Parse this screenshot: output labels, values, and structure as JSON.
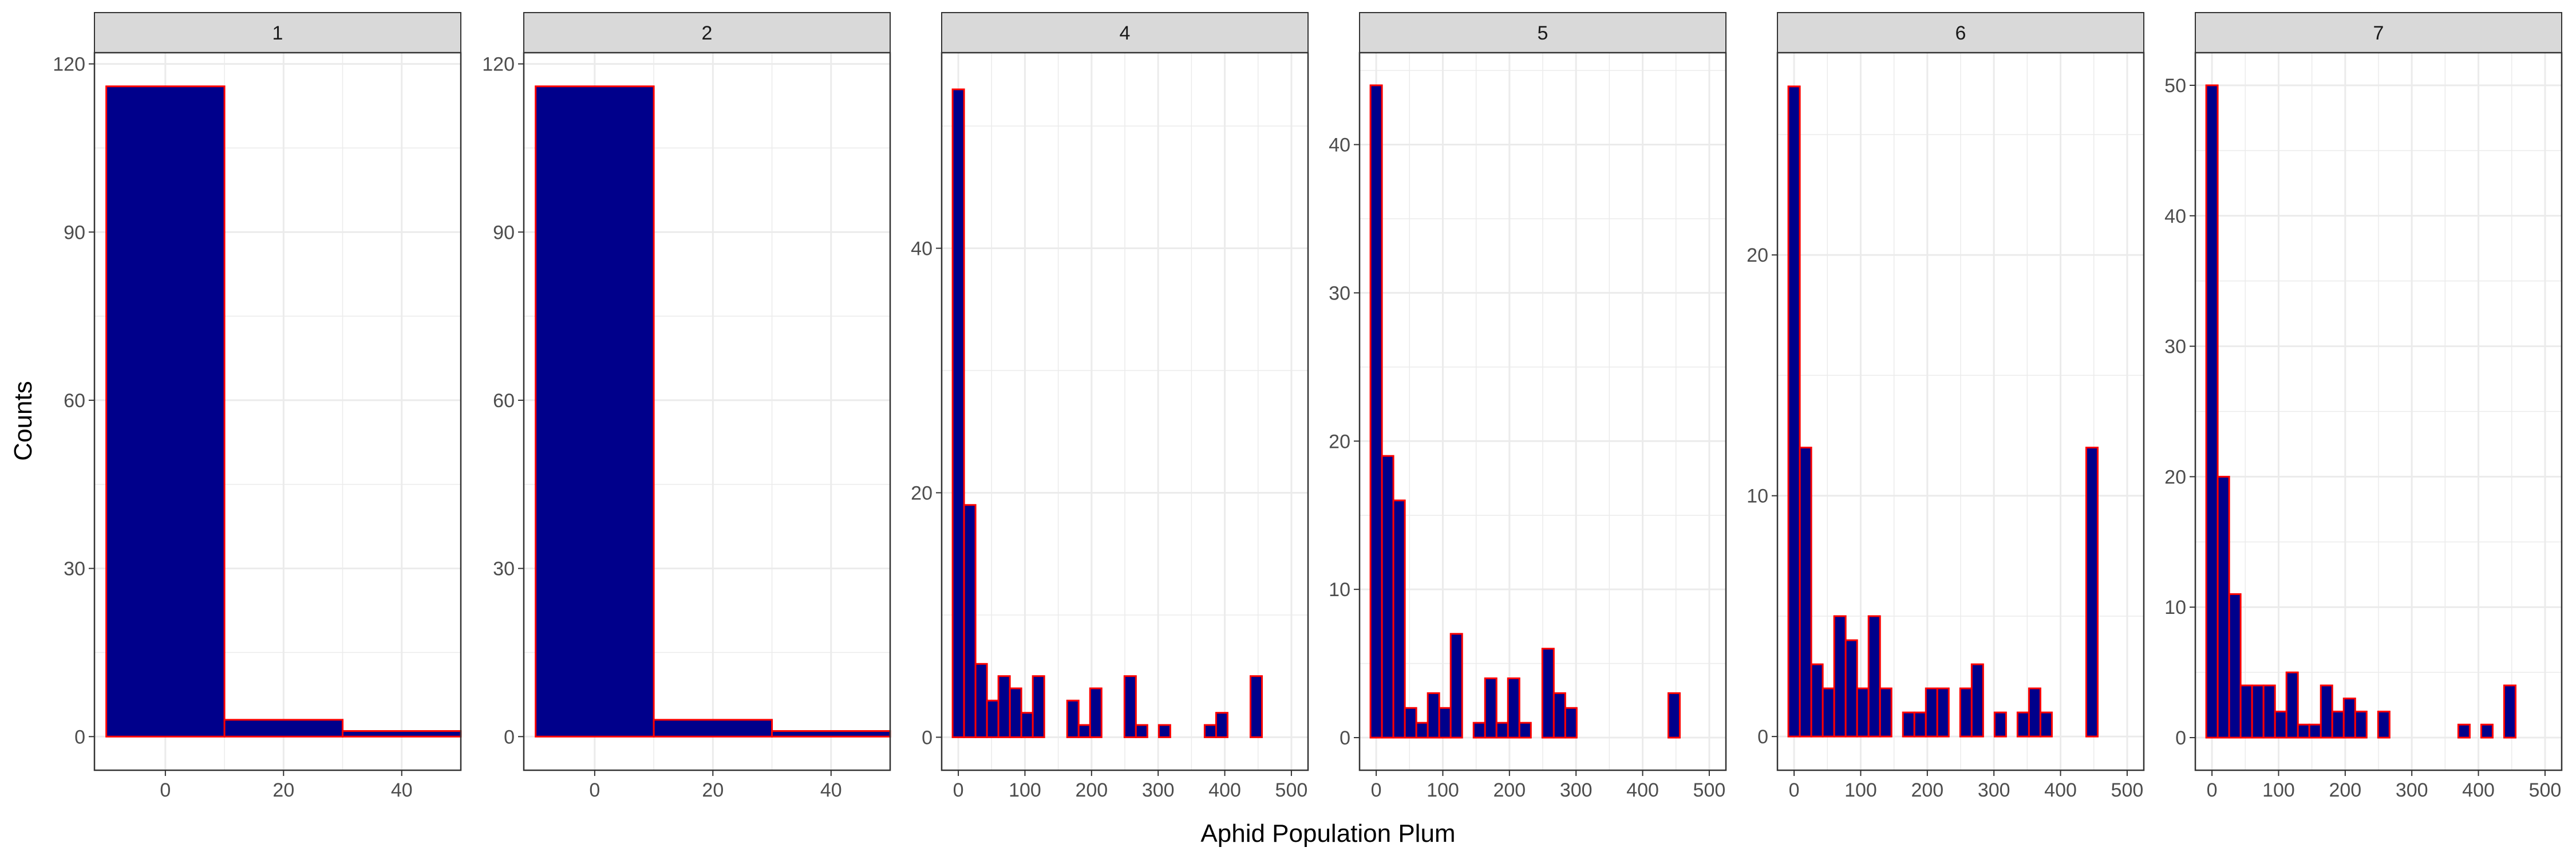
{
  "chart_data": {
    "type": "bar",
    "subtype": "faceted-histogram",
    "xlabel": "Aphid Population Plum",
    "ylabel": "Counts",
    "colors": {
      "fill": "#00008b",
      "stroke": "#ff0000",
      "strip_fill": "#d9d9d9",
      "grid": "#ebebeb"
    },
    "grid": true,
    "panels": [
      {
        "strip": "1",
        "xlim": [
          -12,
          50
        ],
        "ylim": [
          -6,
          122
        ],
        "xticks": [
          0,
          20,
          40
        ],
        "yticks": [
          0,
          30,
          60,
          90,
          120
        ],
        "bins": [
          [
            -10,
            10,
            116
          ],
          [
            10,
            30,
            3
          ],
          [
            30,
            50,
            1
          ]
        ]
      },
      {
        "strip": "2",
        "xlim": [
          -12,
          50
        ],
        "ylim": [
          -6,
          122
        ],
        "xticks": [
          0,
          20,
          40
        ],
        "yticks": [
          0,
          30,
          60,
          90,
          120
        ],
        "bins": [
          [
            -10,
            10,
            116
          ],
          [
            10,
            30,
            3
          ],
          [
            30,
            50,
            1
          ]
        ]
      },
      {
        "strip": "4",
        "xlim": [
          -25,
          525
        ],
        "ylim": [
          -2.7,
          56
        ],
        "xticks": [
          0,
          100,
          200,
          300,
          400,
          500
        ],
        "yticks": [
          0,
          20,
          40
        ],
        "binwidth": 17.2,
        "counts": [
          53,
          19,
          6,
          3,
          5,
          4,
          2,
          5,
          0,
          0,
          3,
          1,
          4,
          0,
          0,
          5,
          1,
          0,
          1,
          0,
          0,
          0,
          1,
          2,
          0,
          0,
          5
        ]
      },
      {
        "strip": "5",
        "xlim": [
          -25,
          525
        ],
        "ylim": [
          -2.2,
          46.2
        ],
        "xticks": [
          0,
          100,
          200,
          300,
          400,
          500
        ],
        "yticks": [
          0,
          10,
          20,
          30,
          40
        ],
        "binwidth": 17.2,
        "counts": [
          44,
          19,
          16,
          2,
          1,
          3,
          2,
          7,
          0,
          1,
          4,
          1,
          4,
          1,
          0,
          6,
          3,
          2,
          0,
          0,
          0,
          0,
          0,
          0,
          0,
          0,
          3
        ]
      },
      {
        "strip": "6",
        "xlim": [
          -25,
          525
        ],
        "ylim": [
          -1.4,
          28.4
        ],
        "xticks": [
          0,
          100,
          200,
          300,
          400,
          500
        ],
        "yticks": [
          0,
          10,
          20
        ],
        "binwidth": 17.2,
        "counts": [
          27,
          12,
          3,
          2,
          5,
          4,
          2,
          5,
          2,
          0,
          1,
          1,
          2,
          2,
          0,
          2,
          3,
          0,
          1,
          0,
          1,
          2,
          1,
          0,
          0,
          0,
          12
        ]
      },
      {
        "strip": "7",
        "xlim": [
          -25,
          525
        ],
        "ylim": [
          -2.5,
          52.5
        ],
        "xticks": [
          0,
          100,
          200,
          300,
          400,
          500
        ],
        "yticks": [
          0,
          10,
          20,
          30,
          40,
          50
        ],
        "binwidth": 17.2,
        "counts": [
          50,
          20,
          11,
          4,
          4,
          4,
          2,
          5,
          1,
          1,
          4,
          2,
          3,
          2,
          0,
          2,
          0,
          0,
          0,
          0,
          0,
          0,
          1,
          0,
          1,
          0,
          4
        ]
      }
    ]
  }
}
